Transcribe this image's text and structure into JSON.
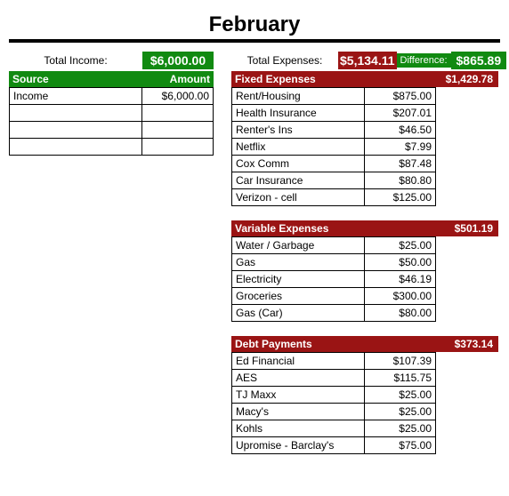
{
  "title": "February",
  "colors": {
    "green": "#118a11",
    "red": "#9a1414",
    "black": "#000000",
    "white": "#ffffff"
  },
  "income": {
    "summary_label": "Total Income:",
    "summary_value": "$6,000.00",
    "header_label": "Source",
    "header_amount": "Amount",
    "rows": [
      {
        "label": "Income",
        "amount": "$6,000.00"
      },
      {
        "label": "",
        "amount": ""
      },
      {
        "label": "",
        "amount": ""
      },
      {
        "label": "",
        "amount": ""
      }
    ]
  },
  "expenses": {
    "summary_label": "Total Expenses:",
    "summary_value": "$5,134.11",
    "difference_label": "Difference:",
    "difference_value": "$865.89"
  },
  "sections": [
    {
      "title": "Fixed Expenses",
      "total": "$1,429.78",
      "rows": [
        {
          "label": "Rent/Housing",
          "amount": "$875.00"
        },
        {
          "label": "Health Insurance",
          "amount": "$207.01"
        },
        {
          "label": "Renter's Ins",
          "amount": "$46.50"
        },
        {
          "label": "Netflix",
          "amount": "$7.99"
        },
        {
          "label": "Cox Comm",
          "amount": "$87.48"
        },
        {
          "label": "Car Insurance",
          "amount": "$80.80"
        },
        {
          "label": "Verizon - cell",
          "amount": "$125.00"
        }
      ]
    },
    {
      "title": "Variable Expenses",
      "total": "$501.19",
      "rows": [
        {
          "label": "Water / Garbage",
          "amount": "$25.00"
        },
        {
          "label": "Gas",
          "amount": "$50.00"
        },
        {
          "label": "Electricity",
          "amount": "$46.19"
        },
        {
          "label": "Groceries",
          "amount": "$300.00"
        },
        {
          "label": "Gas (Car)",
          "amount": "$80.00"
        }
      ]
    },
    {
      "title": "Debt Payments",
      "total": "$373.14",
      "rows": [
        {
          "label": "Ed Financial",
          "amount": "$107.39"
        },
        {
          "label": "AES",
          "amount": "$115.75"
        },
        {
          "label": "TJ Maxx",
          "amount": "$25.00"
        },
        {
          "label": "Macy's",
          "amount": "$25.00"
        },
        {
          "label": "Kohls",
          "amount": "$25.00"
        },
        {
          "label": "Upromise - Barclay's",
          "amount": "$75.00"
        }
      ]
    }
  ]
}
